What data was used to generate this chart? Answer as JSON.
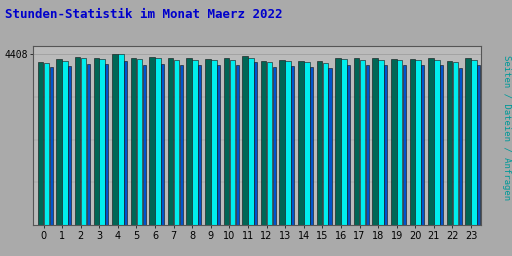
{
  "title": "Stunden-Statistik im Monat Maerz 2022",
  "title_color": "#0000CC",
  "title_fontsize": 9,
  "ylabel_right": "Seiten / Dateien / Anfragen",
  "ylabel_right_color": "#009999",
  "background_color": "#AAAAAA",
  "plot_bg_color": "#BBBBBB",
  "hours": [
    0,
    1,
    2,
    3,
    4,
    5,
    6,
    7,
    8,
    9,
    10,
    11,
    12,
    13,
    14,
    15,
    16,
    17,
    18,
    19,
    20,
    21,
    22,
    23
  ],
  "color_cyan": "#00EEEE",
  "color_teal": "#006655",
  "color_blue": "#0055CC",
  "ymax": 4608,
  "ytick_val": 4408,
  "seiten": [
    4170,
    4230,
    4290,
    4270,
    4408,
    4265,
    4295,
    4260,
    4255,
    4248,
    4258,
    4310,
    4195,
    4215,
    4190,
    4180,
    4270,
    4258,
    4255,
    4250,
    4240,
    4258,
    4200,
    4260
  ],
  "dateien": [
    4210,
    4265,
    4330,
    4310,
    4408,
    4300,
    4330,
    4295,
    4290,
    4282,
    4292,
    4350,
    4230,
    4250,
    4225,
    4215,
    4308,
    4292,
    4290,
    4285,
    4275,
    4293,
    4235,
    4300
  ],
  "anfragen": [
    4060,
    4105,
    4160,
    4140,
    4220,
    4130,
    4150,
    4115,
    4120,
    4112,
    4122,
    4190,
    4068,
    4085,
    4062,
    4052,
    4118,
    4112,
    4118,
    4112,
    4112,
    4120,
    4052,
    4118
  ]
}
